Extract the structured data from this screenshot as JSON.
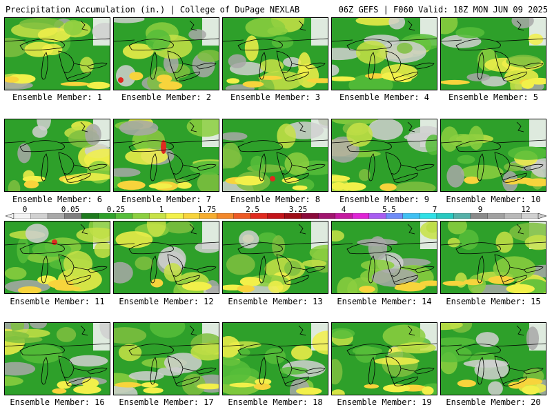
{
  "header": {
    "title_left": "Precipitation Accumulation (in.) | College of DuPage NEXLAB",
    "title_right": "06Z GEFS | F060 Valid: 18Z MON JUN 09 2025"
  },
  "colorbar": {
    "labels": [
      "0",
      "0.05",
      "0.25",
      "1",
      "1.75",
      "2.5",
      "3.25",
      "4",
      "5.5",
      "7",
      "9",
      "12"
    ],
    "colors": [
      "#f2f2f2",
      "#d0d0d0",
      "#a8a8a8",
      "#7f7f7f",
      "#1e7a1e",
      "#2ea02a",
      "#56bd3a",
      "#8ccf3f",
      "#c7e246",
      "#f2f04a",
      "#f7d43c",
      "#f6ad2f",
      "#f2872a",
      "#ec5a25",
      "#e02a1f",
      "#c3141a",
      "#9e0d17",
      "#8a0a3a",
      "#a0156e",
      "#c4199f",
      "#de25d5",
      "#a85cf0",
      "#6f8cf7",
      "#3fc0f2",
      "#2fe0e6",
      "#28c8c0",
      "#55b0a8",
      "#8a8a8a",
      "#a0a0a0",
      "#b8b8b8",
      "#d0d0d0"
    ]
  },
  "panels": [
    {
      "label": "Ensemble Member: 1"
    },
    {
      "label": "Ensemble Member: 2"
    },
    {
      "label": "Ensemble Member: 3"
    },
    {
      "label": "Ensemble Member: 4"
    },
    {
      "label": "Ensemble Member: 5"
    },
    {
      "label": "Ensemble Member: 6"
    },
    {
      "label": "Ensemble Member: 7"
    },
    {
      "label": "Ensemble Member: 8"
    },
    {
      "label": "Ensemble Member: 9"
    },
    {
      "label": "Ensemble Member: 10"
    },
    {
      "label": "Ensemble Member: 11"
    },
    {
      "label": "Ensemble Member: 12"
    },
    {
      "label": "Ensemble Member: 13"
    },
    {
      "label": "Ensemble Member: 14"
    },
    {
      "label": "Ensemble Member: 15"
    },
    {
      "label": "Ensemble Member: 16"
    },
    {
      "label": "Ensemble Member: 17"
    },
    {
      "label": "Ensemble Member: 18"
    },
    {
      "label": "Ensemble Member: 19"
    },
    {
      "label": "Ensemble Member: 20"
    }
  ]
}
